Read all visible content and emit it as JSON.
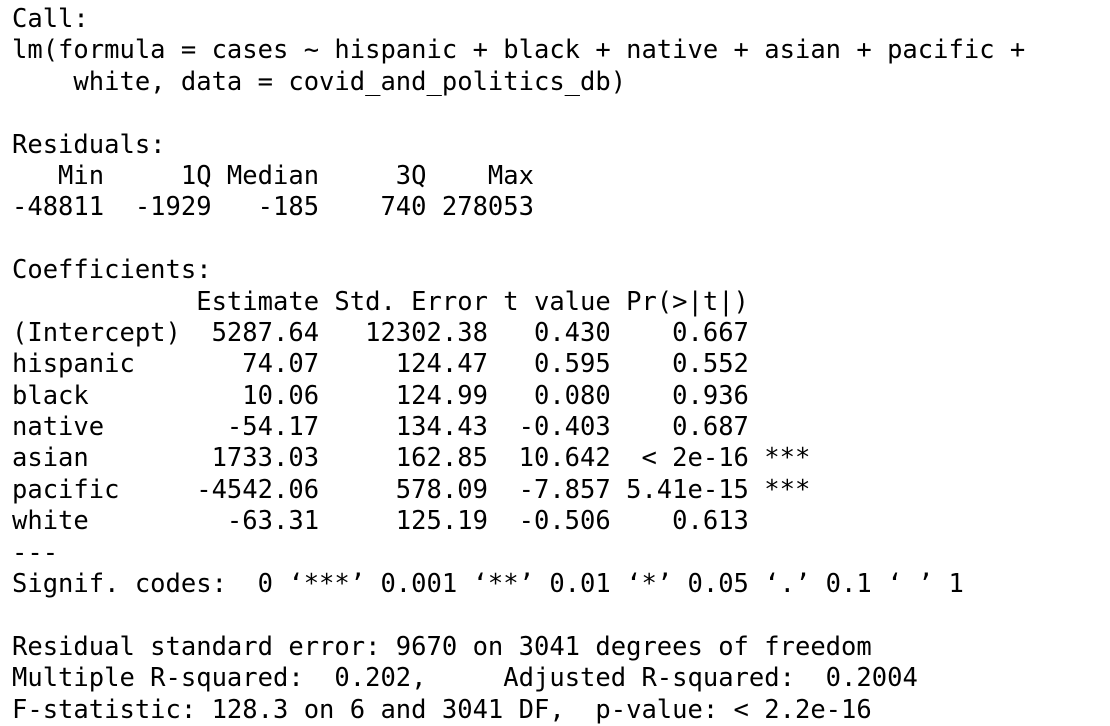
{
  "output": {
    "call_header": "Call:",
    "call_line1": "lm(formula = cases ~ hispanic + black + native + asian + pacific + ",
    "call_line2": "    white, data = covid_and_politics_db)",
    "residuals_header": "Residuals:",
    "residuals_labels": "   Min     1Q Median     3Q    Max ",
    "residuals_values": "-48811  -1929   -185    740 278053 ",
    "coefficients_header": "Coefficients:",
    "coef_columns": "            Estimate Std. Error t value Pr(>|t|)    ",
    "coef_rows": [
      "(Intercept)  5287.64   12302.38   0.430    0.667    ",
      "hispanic       74.07     124.47   0.595    0.552    ",
      "black          10.06     124.99   0.080    0.936    ",
      "native        -54.17     134.43  -0.403    0.687    ",
      "asian        1733.03     162.85  10.642  < 2e-16 ***",
      "pacific     -4542.06     578.09  -7.857 5.41e-15 ***",
      "white         -63.31     125.19  -0.506    0.613    "
    ],
    "separator": "---",
    "signif_codes": "Signif. codes:  0 ‘***’ 0.001 ‘**’ 0.01 ‘*’ 0.05 ‘.’ 0.1 ‘ ’ 1",
    "residual_se": "Residual standard error: 9670 on 3041 degrees of freedom",
    "r_squared": "Multiple R-squared:  0.202,\tAdjusted R-squared:  0.2004 ",
    "f_statistic": "F-statistic: 128.3 on 6 and 3041 DF,  p-value: < 2.2e-16"
  }
}
